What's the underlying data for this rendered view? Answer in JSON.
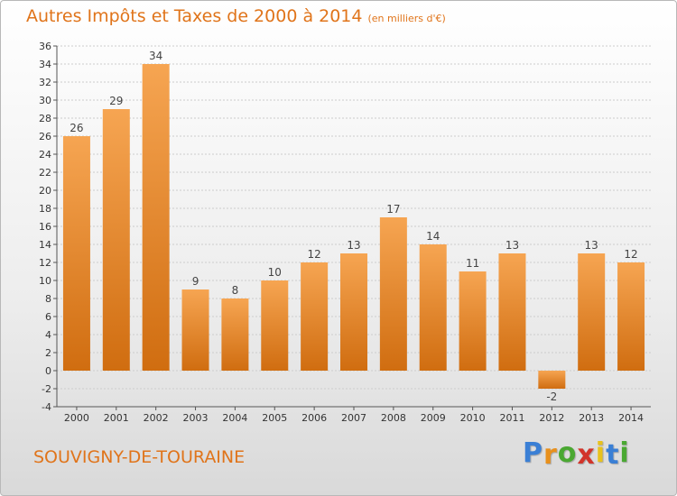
{
  "title": "Autres Impôts et Taxes de 2000 à 2014",
  "unit": "(en milliers d'€)",
  "city": "SOUVIGNY-DE-TOURAINE",
  "logo": {
    "letters": [
      "P",
      "r",
      "o",
      "x",
      "i",
      "t",
      "i"
    ],
    "colors": [
      "#3a7fd5",
      "#e8901c",
      "#4aa832",
      "#d2342a",
      "#e8c21c",
      "#3a7fd5",
      "#4aa832"
    ]
  },
  "colors": {
    "bar_top": "#f6a552",
    "bar_bottom": "#d06d10",
    "title": "#e0741a",
    "grid": "#cccccc"
  },
  "chart_data": {
    "type": "bar",
    "categories": [
      "2000",
      "2001",
      "2002",
      "2003",
      "2004",
      "2005",
      "2006",
      "2007",
      "2008",
      "2009",
      "2010",
      "2011",
      "2012",
      "2013",
      "2014"
    ],
    "values": [
      26,
      29,
      34,
      9,
      8,
      10,
      12,
      13,
      17,
      14,
      11,
      13,
      -2,
      13,
      12
    ],
    "title": "Autres Impôts et Taxes de 2000 à 2014",
    "xlabel": "",
    "ylabel": "",
    "ylim": [
      -4,
      36
    ],
    "yticks": [
      -4,
      -2,
      0,
      2,
      4,
      6,
      8,
      10,
      12,
      14,
      16,
      18,
      20,
      22,
      24,
      26,
      28,
      30,
      32,
      34,
      36
    ],
    "grid": true,
    "data_labels": true
  }
}
